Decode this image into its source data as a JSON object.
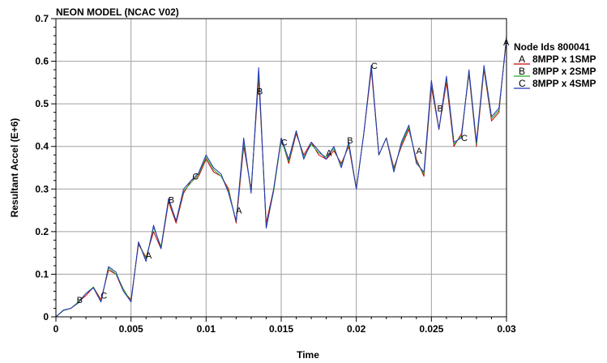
{
  "chart_data": {
    "type": "line",
    "title": "NEON MODEL (NCAC V02)",
    "xlabel": "Time",
    "ylabel": "Resultant Accel (E+6)",
    "xlim": [
      0,
      0.03
    ],
    "ylim": [
      0,
      0.7
    ],
    "xticks": [
      0,
      0.005,
      0.01,
      0.015,
      0.02,
      0.025,
      0.03
    ],
    "xtick_labels": [
      "0",
      "0.005",
      "0.01",
      "0.015",
      "0.02",
      "0.025",
      "0.03"
    ],
    "yticks": [
      0,
      0.1,
      0.2,
      0.3,
      0.4,
      0.5,
      0.6,
      0.7
    ],
    "ytick_labels": [
      "0",
      "0.1",
      "0.2",
      "0.3",
      "0.4",
      "0.5",
      "0.6",
      "0.7"
    ],
    "grid": true,
    "legend_title": "Node Ids 800041",
    "legend_placement": "right",
    "series": [
      {
        "letter": "A",
        "name": "8MPP x 1SMP",
        "color": "#cc0000",
        "x": [
          0,
          0.0005,
          0.001,
          0.0015,
          0.002,
          0.0025,
          0.003,
          0.0035,
          0.004,
          0.0045,
          0.005,
          0.0055,
          0.006,
          0.0065,
          0.007,
          0.0075,
          0.008,
          0.0085,
          0.009,
          0.0095,
          0.01,
          0.0105,
          0.011,
          0.0115,
          0.012,
          0.0125,
          0.013,
          0.0135,
          0.014,
          0.0145,
          0.015,
          0.0155,
          0.016,
          0.0165,
          0.017,
          0.0175,
          0.018,
          0.0185,
          0.019,
          0.0195,
          0.02,
          0.0205,
          0.021,
          0.0215,
          0.022,
          0.0225,
          0.023,
          0.0235,
          0.024,
          0.0245,
          0.025,
          0.0255,
          0.026,
          0.0265,
          0.027,
          0.0275,
          0.028,
          0.0285,
          0.029,
          0.0295,
          0.03
        ],
        "values": [
          0,
          0.015,
          0.02,
          0.035,
          0.05,
          0.07,
          0.04,
          0.11,
          0.1,
          0.06,
          0.04,
          0.17,
          0.14,
          0.2,
          0.16,
          0.27,
          0.22,
          0.29,
          0.32,
          0.33,
          0.37,
          0.34,
          0.33,
          0.3,
          0.22,
          0.4,
          0.3,
          0.56,
          0.22,
          0.3,
          0.42,
          0.36,
          0.43,
          0.38,
          0.41,
          0.38,
          0.37,
          0.39,
          0.36,
          0.4,
          0.3,
          0.43,
          0.58,
          0.38,
          0.42,
          0.35,
          0.4,
          0.44,
          0.37,
          0.33,
          0.54,
          0.44,
          0.55,
          0.4,
          0.43,
          0.57,
          0.4,
          0.58,
          0.46,
          0.48,
          0.66
        ]
      },
      {
        "letter": "B",
        "name": "8MPP x 2SMP",
        "color": "#22aa22",
        "x": [
          0,
          0.0005,
          0.001,
          0.0015,
          0.002,
          0.0025,
          0.003,
          0.0035,
          0.004,
          0.0045,
          0.005,
          0.0055,
          0.006,
          0.0065,
          0.007,
          0.0075,
          0.008,
          0.0085,
          0.009,
          0.0095,
          0.01,
          0.0105,
          0.011,
          0.0115,
          0.012,
          0.0125,
          0.013,
          0.0135,
          0.014,
          0.0145,
          0.015,
          0.0155,
          0.016,
          0.0165,
          0.017,
          0.0175,
          0.018,
          0.0185,
          0.019,
          0.0195,
          0.02,
          0.0205,
          0.021,
          0.0215,
          0.022,
          0.0225,
          0.023,
          0.0235,
          0.024,
          0.0245,
          0.025,
          0.0255,
          0.026,
          0.0265,
          0.027,
          0.0275,
          0.028,
          0.0285,
          0.029,
          0.0295,
          0.03
        ],
        "values": [
          0,
          0.015,
          0.02,
          0.035,
          0.055,
          0.07,
          0.035,
          0.115,
          0.1,
          0.065,
          0.035,
          0.175,
          0.135,
          0.21,
          0.165,
          0.275,
          0.225,
          0.295,
          0.315,
          0.335,
          0.375,
          0.345,
          0.33,
          0.295,
          0.225,
          0.41,
          0.295,
          0.575,
          0.21,
          0.295,
          0.415,
          0.365,
          0.435,
          0.375,
          0.405,
          0.385,
          0.375,
          0.395,
          0.355,
          0.405,
          0.3,
          0.43,
          0.59,
          0.38,
          0.42,
          0.345,
          0.405,
          0.445,
          0.365,
          0.335,
          0.55,
          0.44,
          0.56,
          0.405,
          0.425,
          0.575,
          0.405,
          0.585,
          0.465,
          0.485,
          0.655
        ]
      },
      {
        "letter": "C",
        "name": "8MPP x 4SMP",
        "color": "#2233bb",
        "x": [
          0,
          0.0005,
          0.001,
          0.0015,
          0.002,
          0.0025,
          0.003,
          0.0035,
          0.004,
          0.0045,
          0.005,
          0.0055,
          0.006,
          0.0065,
          0.007,
          0.0075,
          0.008,
          0.0085,
          0.009,
          0.0095,
          0.01,
          0.0105,
          0.011,
          0.0115,
          0.012,
          0.0125,
          0.013,
          0.0135,
          0.014,
          0.0145,
          0.015,
          0.0155,
          0.016,
          0.0165,
          0.017,
          0.0175,
          0.018,
          0.0185,
          0.019,
          0.0195,
          0.02,
          0.0205,
          0.021,
          0.0215,
          0.022,
          0.0225,
          0.023,
          0.0235,
          0.024,
          0.0245,
          0.025,
          0.0255,
          0.026,
          0.0265,
          0.027,
          0.0275,
          0.028,
          0.0285,
          0.029,
          0.0295,
          0.03
        ],
        "values": [
          0,
          0.016,
          0.02,
          0.033,
          0.055,
          0.068,
          0.035,
          0.118,
          0.105,
          0.06,
          0.035,
          0.176,
          0.13,
          0.215,
          0.16,
          0.278,
          0.225,
          0.3,
          0.32,
          0.338,
          0.38,
          0.35,
          0.335,
          0.29,
          0.225,
          0.42,
          0.29,
          0.585,
          0.208,
          0.3,
          0.42,
          0.37,
          0.437,
          0.37,
          0.41,
          0.39,
          0.37,
          0.4,
          0.35,
          0.41,
          0.3,
          0.43,
          0.59,
          0.38,
          0.42,
          0.34,
          0.41,
          0.45,
          0.36,
          0.34,
          0.555,
          0.44,
          0.565,
          0.41,
          0.42,
          0.58,
          0.41,
          0.59,
          0.47,
          0.49,
          0.65
        ]
      }
    ],
    "markers": [
      {
        "letter": "B",
        "x": 0.0016,
        "y": 0.04
      },
      {
        "letter": "C",
        "x": 0.0032,
        "y": 0.05
      },
      {
        "letter": "A",
        "x": 0.0062,
        "y": 0.145
      },
      {
        "letter": "B",
        "x": 0.0077,
        "y": 0.275
      },
      {
        "letter": "C",
        "x": 0.0093,
        "y": 0.33
      },
      {
        "letter": "A",
        "x": 0.0122,
        "y": 0.25
      },
      {
        "letter": "B",
        "x": 0.0136,
        "y": 0.53
      },
      {
        "letter": "C",
        "x": 0.0152,
        "y": 0.41
      },
      {
        "letter": "A",
        "x": 0.0182,
        "y": 0.385
      },
      {
        "letter": "B",
        "x": 0.0196,
        "y": 0.415
      },
      {
        "letter": "C",
        "x": 0.0212,
        "y": 0.59
      },
      {
        "letter": "A",
        "x": 0.0242,
        "y": 0.39
      },
      {
        "letter": "B",
        "x": 0.0256,
        "y": 0.49
      },
      {
        "letter": "C",
        "x": 0.0272,
        "y": 0.42
      },
      {
        "letter": "A",
        "x": 0.03,
        "y": 0.645
      }
    ]
  }
}
